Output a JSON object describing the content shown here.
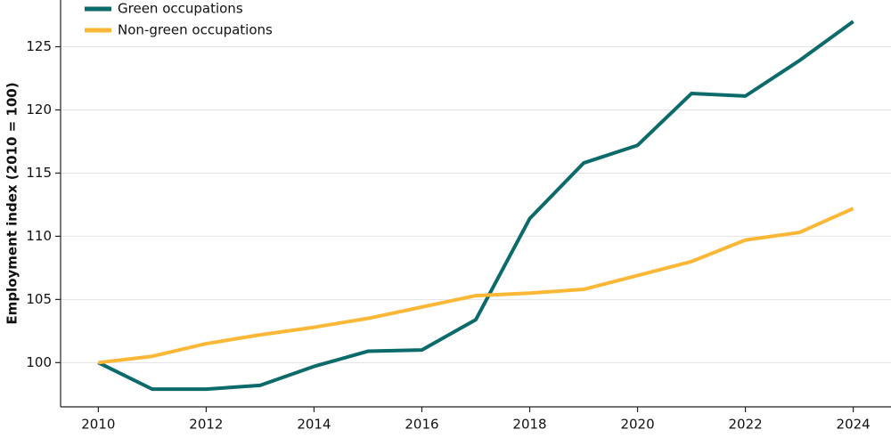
{
  "chart_data": {
    "type": "line",
    "y_label": "Employment index (2010 = 100)",
    "x": [
      2010,
      2011,
      2012,
      2013,
      2014,
      2015,
      2016,
      2017,
      2018,
      2019,
      2020,
      2021,
      2022,
      2023,
      2024
    ],
    "series": [
      {
        "name": "Green occupations",
        "color": "#0b6a6a",
        "values": [
          100,
          97.9,
          97.9,
          98.2,
          99.7,
          100.9,
          101.0,
          103.4,
          111.4,
          115.8,
          117.2,
          121.3,
          121.1,
          123.9,
          127.0
        ]
      },
      {
        "name": "Non-green occupations",
        "color": "#fbb735",
        "values": [
          100,
          100.5,
          101.5,
          102.2,
          102.8,
          103.5,
          104.4,
          105.3,
          105.5,
          105.8,
          106.9,
          108.0,
          109.7,
          110.3,
          112.2
        ]
      }
    ],
    "xlim": [
      2009.3,
      2024.7
    ],
    "xticks": [
      2010,
      2012,
      2014,
      2016,
      2018,
      2020,
      2022,
      2024
    ],
    "ylim": [
      96.5,
      128.7
    ],
    "yticks": [
      100,
      105,
      110,
      115,
      120,
      125
    ],
    "grid": true,
    "legend": "top-left"
  }
}
